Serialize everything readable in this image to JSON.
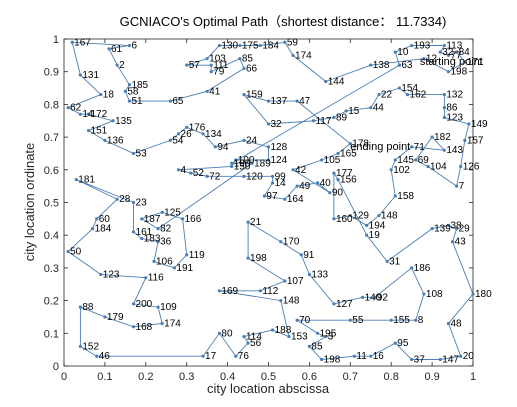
{
  "chart_data": {
    "type": "line",
    "title": "GCNIACO's Optimal Path（shortest distance： 11.7334)",
    "xlabel": "city location abscissa",
    "ylabel": "city location ordinate",
    "xlim": [
      0,
      1
    ],
    "ylim": [
      0,
      1
    ],
    "xticks": [
      "0",
      "0.1",
      "0.2",
      "0.3",
      "0.4",
      "0.5",
      "0.6",
      "0.7",
      "0.8",
      "0.9",
      "1"
    ],
    "yticks": [
      "0",
      "0.1",
      "0.2",
      "0.3",
      "0.4",
      "0.5",
      "0.6",
      "0.7",
      "0.8",
      "0.9",
      "1"
    ],
    "grid": false,
    "line_color": "#4a7fb5",
    "annotations": [
      {
        "text": "starting point",
        "x": 0.87,
        "y": 0.92
      },
      {
        "text": "ending point",
        "x": 0.7,
        "y": 0.66
      }
    ],
    "series": [
      {
        "values": [
          {
            "label": "63",
            "x": 0.82,
            "y": 0.92
          },
          {
            "label": "10",
            "x": 0.81,
            "y": 0.96
          },
          {
            "label": "193",
            "x": 0.85,
            "y": 0.98
          },
          {
            "label": "113",
            "x": 0.93,
            "y": 0.98
          },
          {
            "label": "32",
            "x": 0.92,
            "y": 0.96
          },
          {
            "label": "77",
            "x": 0.94,
            "y": 0.95
          },
          {
            "label": "84",
            "x": 0.96,
            "y": 0.96
          },
          {
            "label": "171",
            "x": 0.98,
            "y": 0.93
          },
          {
            "label": "198",
            "x": 0.94,
            "y": 0.9
          },
          {
            "label": "12",
            "x": 0.88,
            "y": 0.94
          },
          {
            "label": "138",
            "x": 0.75,
            "y": 0.92
          },
          {
            "label": "144",
            "x": 0.64,
            "y": 0.87
          },
          {
            "label": "174",
            "x": 0.56,
            "y": 0.95
          },
          {
            "label": "59",
            "x": 0.54,
            "y": 0.99
          },
          {
            "label": "184",
            "x": 0.48,
            "y": 0.98
          },
          {
            "label": "175",
            "x": 0.43,
            "y": 0.98
          },
          {
            "label": "130",
            "x": 0.38,
            "y": 0.98
          },
          {
            "label": "103",
            "x": 0.35,
            "y": 0.94
          },
          {
            "label": "57",
            "x": 0.3,
            "y": 0.92
          },
          {
            "label": "111",
            "x": 0.36,
            "y": 0.92
          },
          {
            "label": "79",
            "x": 0.36,
            "y": 0.9
          },
          {
            "label": "85",
            "x": 0.43,
            "y": 0.94
          },
          {
            "label": "66",
            "x": 0.44,
            "y": 0.91
          },
          {
            "label": "41",
            "x": 0.35,
            "y": 0.84
          },
          {
            "label": "65",
            "x": 0.26,
            "y": 0.81
          },
          {
            "label": "51",
            "x": 0.16,
            "y": 0.81
          },
          {
            "label": "58",
            "x": 0.15,
            "y": 0.84
          },
          {
            "label": "185",
            "x": 0.16,
            "y": 0.86
          },
          {
            "label": "2",
            "x": 0.13,
            "y": 0.92
          },
          {
            "label": "61",
            "x": 0.11,
            "y": 0.97
          },
          {
            "label": "6",
            "x": 0.16,
            "y": 0.98
          },
          {
            "label": "167",
            "x": 0.02,
            "y": 0.99
          },
          {
            "label": "131",
            "x": 0.04,
            "y": 0.89
          },
          {
            "label": "18",
            "x": 0.09,
            "y": 0.83
          },
          {
            "label": "62",
            "x": 0.01,
            "y": 0.79
          },
          {
            "label": "14",
            "x": 0.04,
            "y": 0.77
          },
          {
            "label": "172",
            "x": 0.06,
            "y": 0.77
          },
          {
            "label": "135",
            "x": 0.12,
            "y": 0.75
          },
          {
            "label": "151",
            "x": 0.06,
            "y": 0.72
          },
          {
            "label": "136",
            "x": 0.1,
            "y": 0.69
          },
          {
            "label": "53",
            "x": 0.17,
            "y": 0.65
          },
          {
            "label": "54",
            "x": 0.26,
            "y": 0.69
          },
          {
            "label": "26",
            "x": 0.28,
            "y": 0.71
          },
          {
            "label": "176",
            "x": 0.3,
            "y": 0.73
          },
          {
            "label": "134",
            "x": 0.34,
            "y": 0.71
          },
          {
            "label": "94",
            "x": 0.37,
            "y": 0.67
          },
          {
            "label": "24",
            "x": 0.44,
            "y": 0.69
          },
          {
            "label": "128",
            "x": 0.5,
            "y": 0.67
          },
          {
            "label": "124",
            "x": 0.5,
            "y": 0.63
          },
          {
            "label": "100",
            "x": 0.42,
            "y": 0.63
          },
          {
            "label": "150",
            "x": 0.41,
            "y": 0.61
          },
          {
            "label": "4",
            "x": 0.28,
            "y": 0.6
          },
          {
            "label": "52",
            "x": 0.31,
            "y": 0.59
          },
          {
            "label": "72",
            "x": 0.35,
            "y": 0.58
          },
          {
            "label": "120",
            "x": 0.44,
            "y": 0.58
          },
          {
            "label": "99",
            "x": 0.51,
            "y": 0.58
          },
          {
            "label": "14b",
            "x": 0.51,
            "y": 0.56
          },
          {
            "label": "97",
            "x": 0.49,
            "y": 0.52
          },
          {
            "label": "164",
            "x": 0.54,
            "y": 0.51
          },
          {
            "label": "49",
            "x": 0.57,
            "y": 0.55
          },
          {
            "label": "40",
            "x": 0.62,
            "y": 0.56
          },
          {
            "label": "90",
            "x": 0.65,
            "y": 0.53
          },
          {
            "label": "42",
            "x": 0.56,
            "y": 0.6
          },
          {
            "label": "105",
            "x": 0.63,
            "y": 0.63
          },
          {
            "label": "165",
            "x": 0.67,
            "y": 0.65
          },
          {
            "label": "178",
            "x": 0.7,
            "y": 0.68
          },
          {
            "label": "47",
            "x": 0.57,
            "y": 0.81
          },
          {
            "label": "137",
            "x": 0.5,
            "y": 0.81
          },
          {
            "label": "159",
            "x": 0.44,
            "y": 0.83
          },
          {
            "label": "32b",
            "x": 0.5,
            "y": 0.74
          },
          {
            "label": "117",
            "x": 0.61,
            "y": 0.75
          },
          {
            "label": "89",
            "x": 0.66,
            "y": 0.76
          },
          {
            "label": "15",
            "x": 0.69,
            "y": 0.78
          },
          {
            "label": "44",
            "x": 0.75,
            "y": 0.79
          },
          {
            "label": "22",
            "x": 0.77,
            "y": 0.83
          },
          {
            "label": "154",
            "x": 0.82,
            "y": 0.85
          },
          {
            "label": "162",
            "x": 0.84,
            "y": 0.83
          },
          {
            "label": "132",
            "x": 0.93,
            "y": 0.83
          },
          {
            "label": "86",
            "x": 0.93,
            "y": 0.79
          },
          {
            "label": "123",
            "x": 0.93,
            "y": 0.76
          },
          {
            "label": "149",
            "x": 0.99,
            "y": 0.74
          },
          {
            "label": "157",
            "x": 0.98,
            "y": 0.69
          },
          {
            "label": "126",
            "x": 0.97,
            "y": 0.61
          },
          {
            "label": "7",
            "x": 0.96,
            "y": 0.55
          },
          {
            "label": "104",
            "x": 0.89,
            "y": 0.61
          },
          {
            "label": "69",
            "x": 0.86,
            "y": 0.63
          },
          {
            "label": "182",
            "x": 0.9,
            "y": 0.7
          },
          {
            "label": "143",
            "x": 0.93,
            "y": 0.66
          },
          {
            "label": "71",
            "x": 0.85,
            "y": 0.67
          },
          {
            "label": "145",
            "x": 0.81,
            "y": 0.63
          },
          {
            "label": "102",
            "x": 0.8,
            "y": 0.6
          },
          {
            "label": "158",
            "x": 0.81,
            "y": 0.52
          },
          {
            "label": "148",
            "x": 0.77,
            "y": 0.46
          },
          {
            "label": "194",
            "x": 0.74,
            "y": 0.43
          },
          {
            "label": "129",
            "x": 0.7,
            "y": 0.46
          },
          {
            "label": "160",
            "x": 0.66,
            "y": 0.45
          },
          {
            "label": "177",
            "x": 0.66,
            "y": 0.59
          },
          {
            "label": "156",
            "x": 0.67,
            "y": 0.57
          },
          {
            "label": "19",
            "x": 0.74,
            "y": 0.4
          },
          {
            "label": "31",
            "x": 0.79,
            "y": 0.32
          },
          {
            "label": "139",
            "x": 0.9,
            "y": 0.42
          },
          {
            "label": "38",
            "x": 0.94,
            "y": 0.43
          },
          {
            "label": "29",
            "x": 0.96,
            "y": 0.42
          },
          {
            "label": "43",
            "x": 0.95,
            "y": 0.38
          },
          {
            "label": "180",
            "x": 1.0,
            "y": 0.22
          },
          {
            "label": "48",
            "x": 0.94,
            "y": 0.13
          },
          {
            "label": "20",
            "x": 0.97,
            "y": 0.03
          },
          {
            "label": "147",
            "x": 0.92,
            "y": 0.02
          },
          {
            "label": "37",
            "x": 0.85,
            "y": 0.02
          },
          {
            "label": "95",
            "x": 0.81,
            "y": 0.07
          },
          {
            "label": "16",
            "x": 0.75,
            "y": 0.03
          },
          {
            "label": "11",
            "x": 0.71,
            "y": 0.03
          },
          {
            "label": "198b",
            "x": 0.63,
            "y": 0.02
          },
          {
            "label": "85b",
            "x": 0.6,
            "y": 0.06
          },
          {
            "label": "3",
            "x": 0.64,
            "y": 0.09
          },
          {
            "label": "195",
            "x": 0.62,
            "y": 0.1
          },
          {
            "label": "70",
            "x": 0.57,
            "y": 0.14
          },
          {
            "label": "55",
            "x": 0.7,
            "y": 0.14
          },
          {
            "label": "155",
            "x": 0.8,
            "y": 0.14
          },
          {
            "label": "8",
            "x": 0.86,
            "y": 0.14
          },
          {
            "label": "108",
            "x": 0.88,
            "y": 0.22
          },
          {
            "label": "186",
            "x": 0.85,
            "y": 0.3
          },
          {
            "label": "92",
            "x": 0.76,
            "y": 0.21
          },
          {
            "label": "140",
            "x": 0.73,
            "y": 0.21
          },
          {
            "label": "127",
            "x": 0.66,
            "y": 0.19
          },
          {
            "label": "133",
            "x": 0.6,
            "y": 0.28
          },
          {
            "label": "91",
            "x": 0.58,
            "y": 0.34
          },
          {
            "label": "170",
            "x": 0.53,
            "y": 0.38
          },
          {
            "label": "21",
            "x": 0.45,
            "y": 0.44
          },
          {
            "label": "198c",
            "x": 0.45,
            "y": 0.33
          },
          {
            "label": "107",
            "x": 0.54,
            "y": 0.26
          },
          {
            "label": "112",
            "x": 0.48,
            "y": 0.23
          },
          {
            "label": "169",
            "x": 0.38,
            "y": 0.23
          },
          {
            "label": "148b",
            "x": 0.53,
            "y": 0.2
          },
          {
            "label": "153",
            "x": 0.55,
            "y": 0.09
          },
          {
            "label": "188",
            "x": 0.51,
            "y": 0.11
          },
          {
            "label": "114",
            "x": 0.44,
            "y": 0.09
          },
          {
            "label": "56",
            "x": 0.45,
            "y": 0.07
          },
          {
            "label": "76",
            "x": 0.42,
            "y": 0.03
          },
          {
            "label": "80",
            "x": 0.38,
            "y": 0.1
          },
          {
            "label": "17",
            "x": 0.34,
            "y": 0.03
          },
          {
            "label": "46",
            "x": 0.08,
            "y": 0.03
          },
          {
            "label": "152",
            "x": 0.04,
            "y": 0.06
          },
          {
            "label": "88",
            "x": 0.04,
            "y": 0.18
          },
          {
            "label": "179",
            "x": 0.1,
            "y": 0.15
          },
          {
            "label": "168",
            "x": 0.17,
            "y": 0.12
          },
          {
            "label": "174b",
            "x": 0.24,
            "y": 0.13
          },
          {
            "label": "109",
            "x": 0.23,
            "y": 0.18
          },
          {
            "label": "200",
            "x": 0.17,
            "y": 0.19
          },
          {
            "label": "116",
            "x": 0.2,
            "y": 0.27
          },
          {
            "label": "123b",
            "x": 0.09,
            "y": 0.28
          },
          {
            "label": "50",
            "x": 0.01,
            "y": 0.35
          },
          {
            "label": "184b",
            "x": 0.07,
            "y": 0.42
          },
          {
            "label": "60",
            "x": 0.08,
            "y": 0.45
          },
          {
            "label": "28",
            "x": 0.13,
            "y": 0.51
          },
          {
            "label": "181",
            "x": 0.03,
            "y": 0.57
          },
          {
            "label": "23",
            "x": 0.17,
            "y": 0.5
          },
          {
            "label": "161",
            "x": 0.17,
            "y": 0.41
          },
          {
            "label": "183",
            "x": 0.19,
            "y": 0.39
          },
          {
            "label": "36",
            "x": 0.23,
            "y": 0.38
          },
          {
            "label": "106",
            "x": 0.22,
            "y": 0.32
          },
          {
            "label": "191",
            "x": 0.27,
            "y": 0.3
          },
          {
            "label": "119",
            "x": 0.3,
            "y": 0.34
          },
          {
            "label": "166",
            "x": 0.29,
            "y": 0.45
          },
          {
            "label": "125",
            "x": 0.24,
            "y": 0.47
          },
          {
            "label": "187",
            "x": 0.19,
            "y": 0.45
          },
          {
            "label": "82",
            "x": 0.23,
            "y": 0.42
          },
          {
            "label": "189",
            "x": 0.46,
            "y": 0.62
          },
          {
            "label": "190",
            "x": 0.41,
            "y": 0.62
          },
          {
            "label": "63b",
            "x": 0.82,
            "y": 0.92
          }
        ]
      }
    ]
  }
}
